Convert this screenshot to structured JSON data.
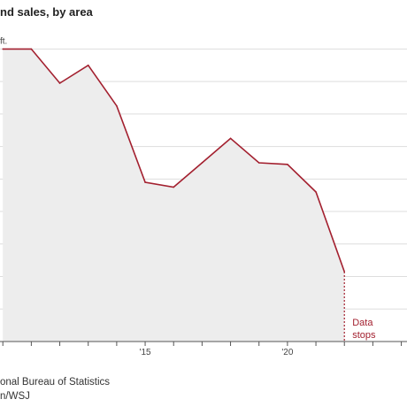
{
  "chart_data": {
    "type": "area",
    "title": "nd sales, by area",
    "unit_label": "ft.",
    "x": [
      2010,
      2011,
      2012,
      2013,
      2014,
      2015,
      2016,
      2017,
      2018,
      2019,
      2020,
      2021,
      2022
    ],
    "values": [
      9.0,
      9.0,
      7.95,
      8.5,
      7.25,
      4.9,
      4.75,
      5.5,
      6.25,
      5.5,
      5.45,
      4.6,
      2.15
    ],
    "xlim": [
      2009.9,
      2024.2
    ],
    "ylim": [
      0,
      9.8
    ],
    "x_ticks": [
      {
        "value": 2015,
        "label": "'15"
      },
      {
        "value": 2020,
        "label": "'20"
      }
    ],
    "grid": true,
    "annotation": {
      "x": 2022,
      "lines": [
        "Data",
        "stops"
      ]
    },
    "line_color": "#a3202f",
    "area_color": "#ededed",
    "grid_color": "#dddddd"
  },
  "source": {
    "line1": "onal Bureau of Statistics",
    "line2": "n/WSJ"
  }
}
